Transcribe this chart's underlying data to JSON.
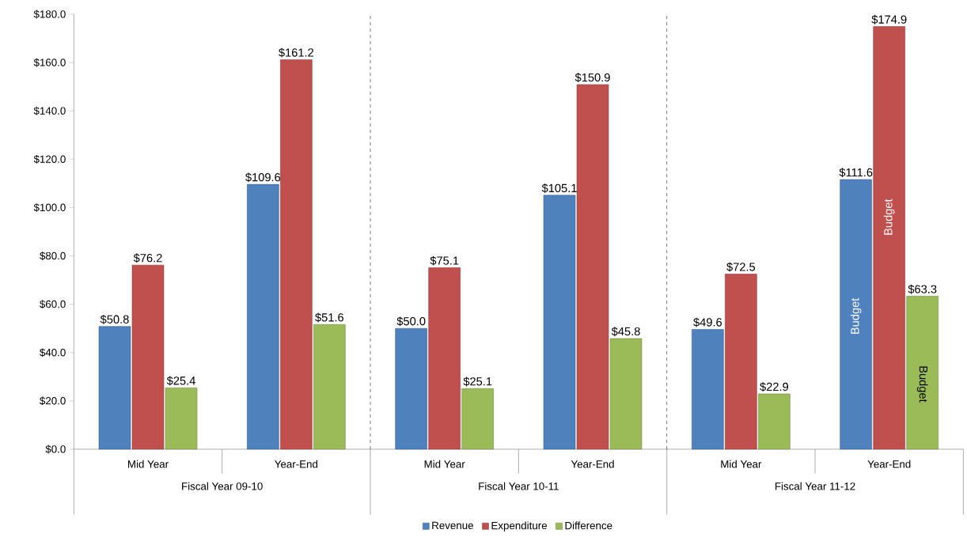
{
  "chart_data": {
    "type": "bar",
    "categories": [
      "Mid Year",
      "Year-End",
      "Mid Year",
      "Year-End",
      "Mid Year",
      "Year-End"
    ],
    "series": [
      {
        "name": "Revenue",
        "color": "#4f81bd",
        "values": [
          50.8,
          109.6,
          50.0,
          105.1,
          49.6,
          111.6
        ],
        "value_labels": [
          "$50.8",
          "$109.6",
          "$50.0",
          "$105.1",
          "$49.6",
          "$111.6"
        ]
      },
      {
        "name": "Expenditure",
        "color": "#c0504d",
        "values": [
          76.2,
          161.2,
          75.1,
          150.9,
          72.5,
          174.9
        ],
        "value_labels": [
          "$76.2",
          "$161.2",
          "$75.1",
          "$150.9",
          "$72.5",
          "$174.9"
        ]
      },
      {
        "name": "Difference",
        "color": "#9bbb59",
        "values": [
          25.4,
          51.6,
          25.1,
          45.8,
          22.9,
          63.3
        ],
        "value_labels": [
          "$25.4",
          "$51.6",
          "$25.1",
          "$45.8",
          "$22.9",
          "$63.3"
        ]
      }
    ],
    "ylim": [
      0,
      180
    ],
    "yticks": [
      {
        "value": 0,
        "label": "$0.0"
      },
      {
        "value": 20,
        "label": "$20.0"
      },
      {
        "value": 40,
        "label": "$40.0"
      },
      {
        "value": 60,
        "label": "$60.0"
      },
      {
        "value": 80,
        "label": "$80.0"
      },
      {
        "value": 100,
        "label": "$100.0"
      },
      {
        "value": 120,
        "label": "$120.0"
      },
      {
        "value": 140,
        "label": "$140.0"
      },
      {
        "value": 160,
        "label": "$160.0"
      },
      {
        "value": 180,
        "label": "$180.0"
      }
    ],
    "annotations": [
      "Fiscal Year 09-10",
      "Fiscal Year 10-11",
      "Fiscal Year 11-12",
      "Budget",
      "Budget",
      "Budget"
    ],
    "legend": "bottom"
  }
}
